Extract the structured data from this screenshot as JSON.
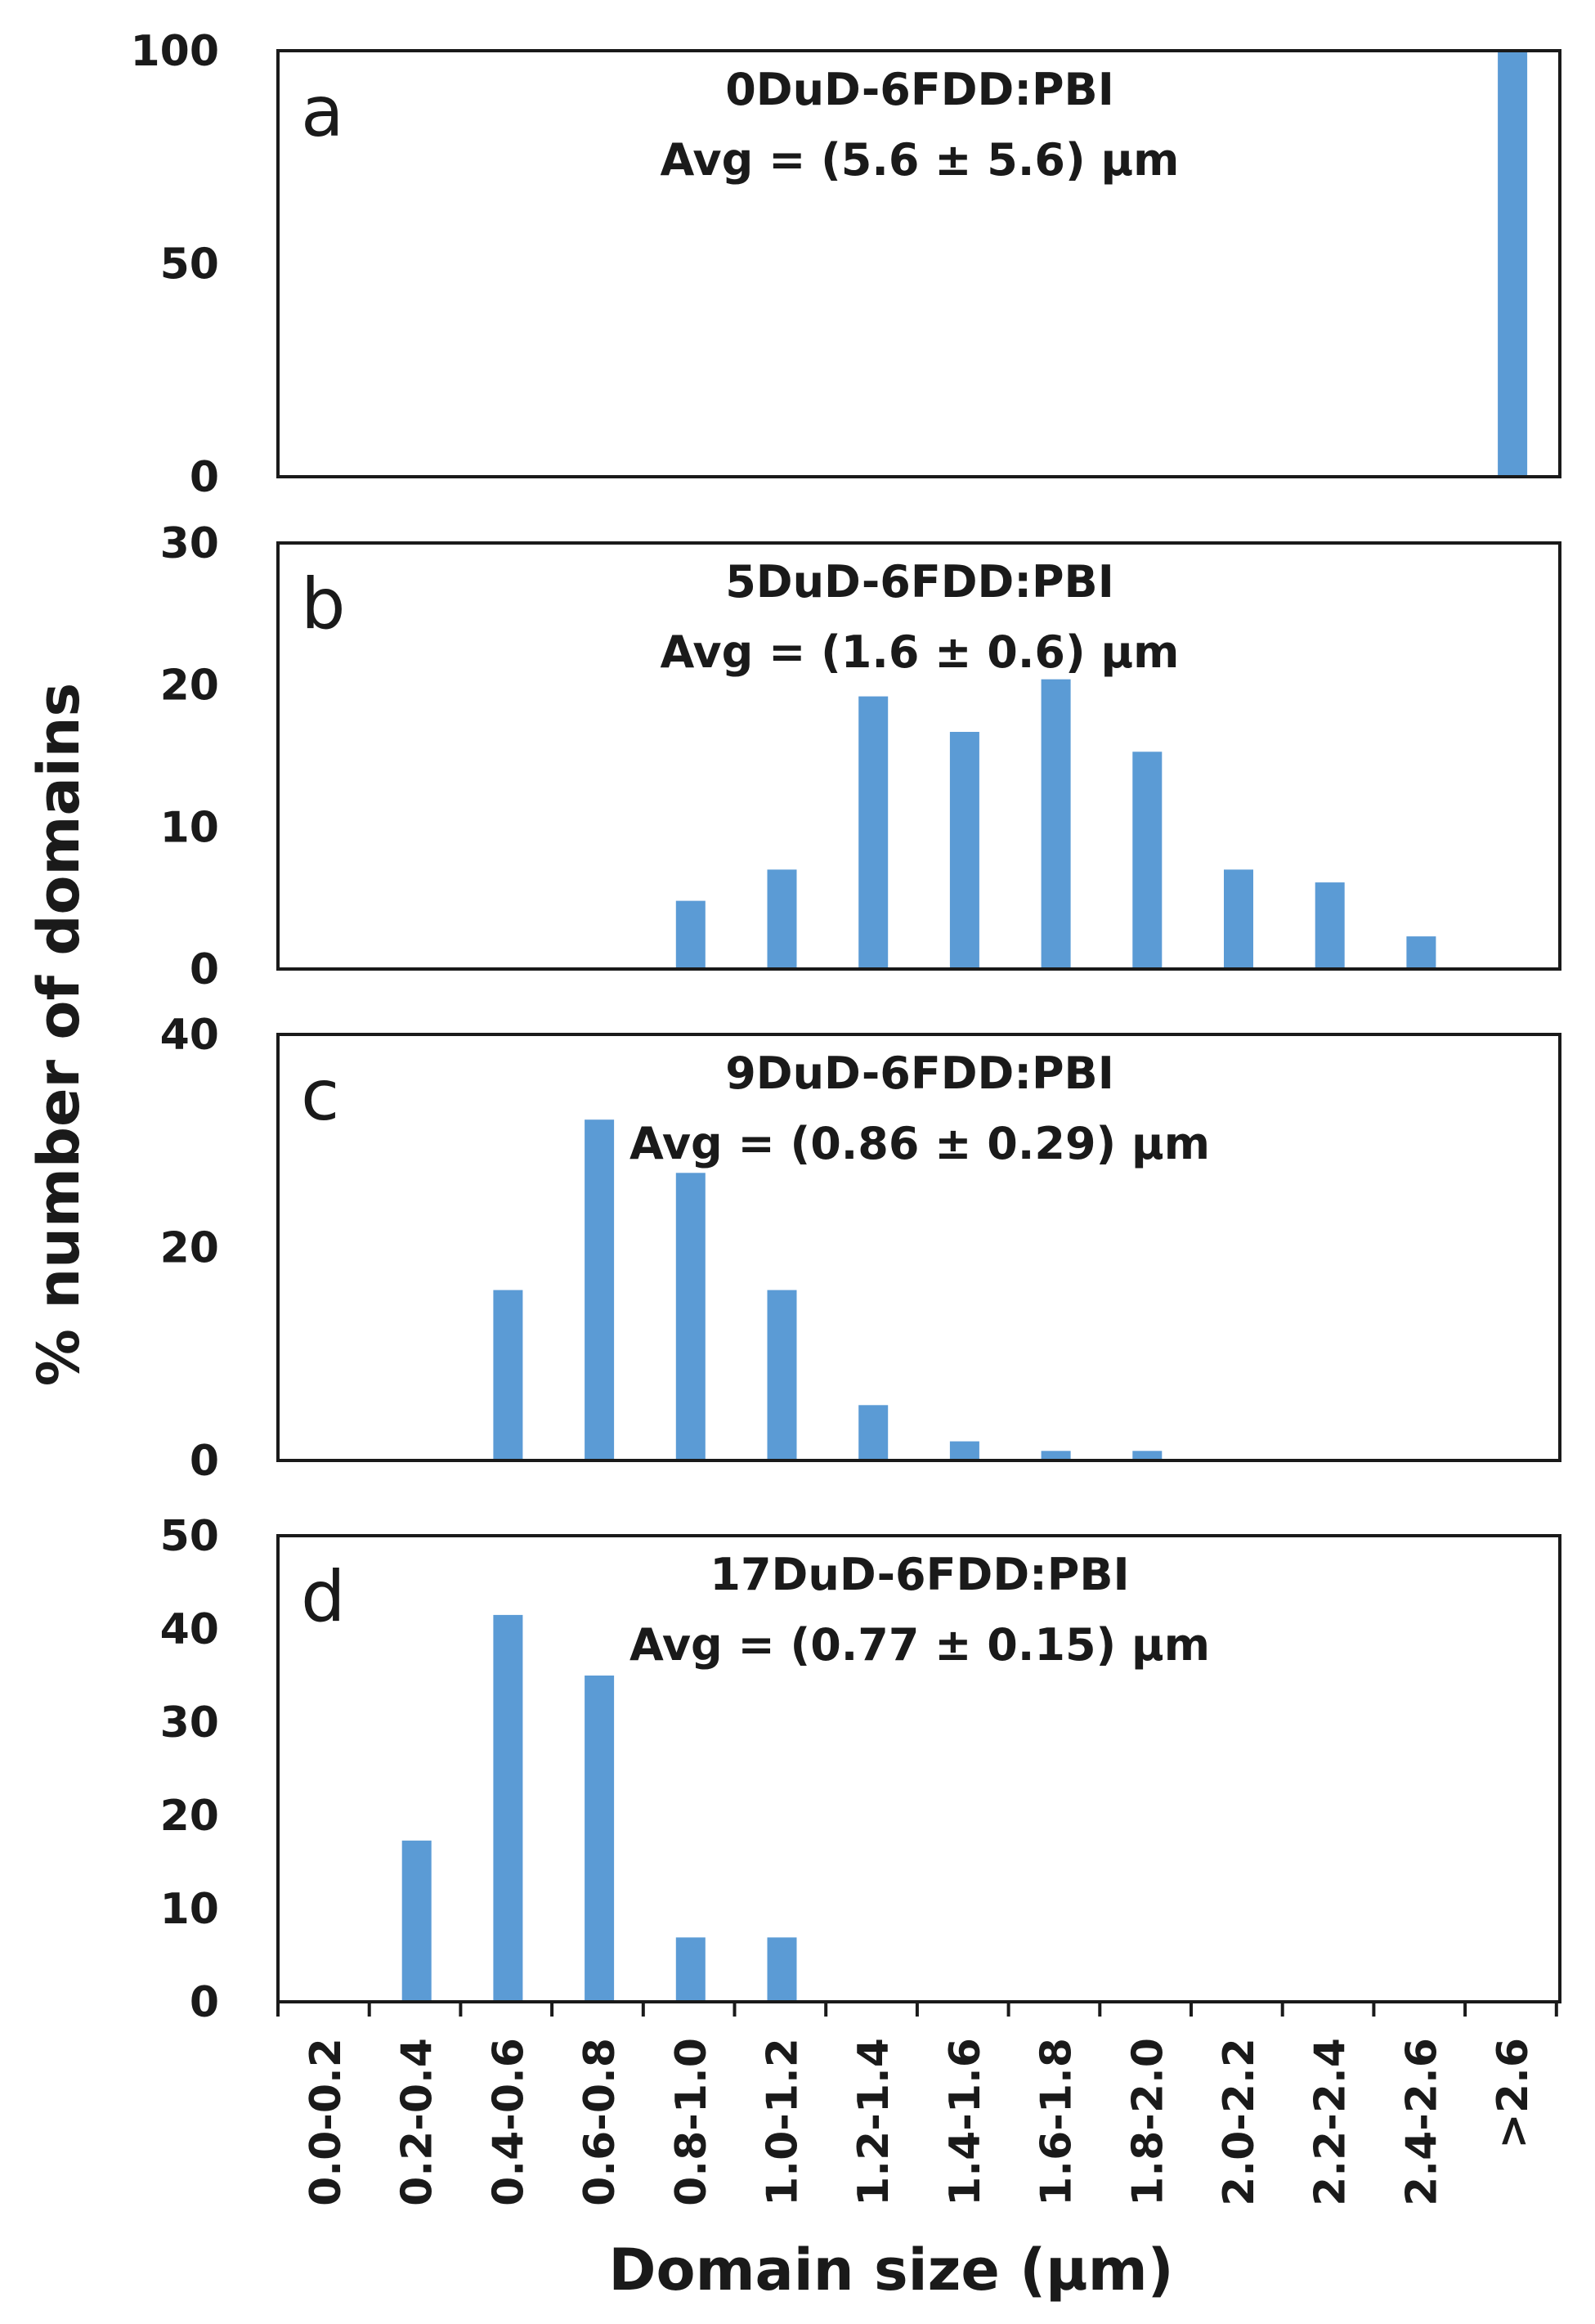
{
  "chart_data": {
    "type": "bar",
    "ylabel": "% number of domains",
    "xlabel": "Domain size (µm)",
    "categories": [
      "0.0-0.2",
      "0.2-0.4",
      "0.4-0.6",
      "0.6-0.8",
      "0.8-1.0",
      "1.0-1.2",
      "1.2-1.4",
      "1.4-1.6",
      "1.6-1.8",
      "1.8-2.0",
      "2.0-2.2",
      "2.2-2.4",
      "2.4-2.6",
      ">2.6"
    ],
    "color": "#5b9bd5",
    "panels": [
      {
        "letter": "a",
        "title": "0DuD-6FDD:PBI",
        "avg": "Avg = (5.6 ± 5.6) µm",
        "ylim": [
          0,
          100
        ],
        "yticks": [
          0,
          50,
          100
        ],
        "values": [
          0,
          0,
          0,
          0,
          0,
          0,
          0,
          0,
          0,
          0,
          0,
          0,
          0,
          100
        ]
      },
      {
        "letter": "b",
        "title": "5DuD-6FDD:PBI",
        "avg": "Avg = (1.6 ± 0.6) µm",
        "ylim": [
          0,
          30
        ],
        "yticks": [
          0,
          10,
          20,
          30
        ],
        "values": [
          0,
          0,
          0,
          0,
          4.8,
          7,
          19.2,
          16.7,
          20.4,
          15.3,
          7,
          6.1,
          2.3,
          0
        ]
      },
      {
        "letter": "c",
        "title": "9DuD-6FDD:PBI",
        "avg": "Avg = (0.86 ± 0.29) µm",
        "ylim": [
          0,
          40
        ],
        "yticks": [
          0,
          20,
          40
        ],
        "values": [
          0,
          0,
          16,
          32,
          27,
          16,
          5.2,
          1.8,
          0.9,
          0.9,
          0,
          0,
          0,
          0
        ]
      },
      {
        "letter": "d",
        "title": "17DuD-6FDD:PBI",
        "avg": "Avg = (0.77 ± 0.15) µm",
        "ylim": [
          0,
          50
        ],
        "yticks": [
          0,
          10,
          20,
          30,
          40,
          50
        ],
        "values": [
          0,
          17.3,
          41.5,
          35,
          6.9,
          6.9,
          0,
          0,
          0,
          0,
          0,
          0,
          0,
          0
        ]
      }
    ]
  }
}
